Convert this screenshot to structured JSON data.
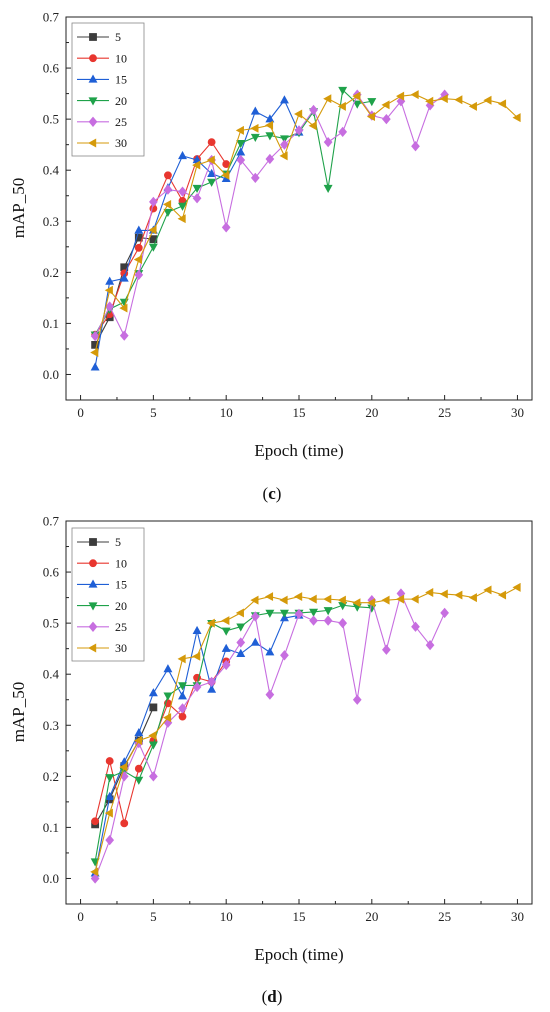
{
  "chart_data": [
    {
      "type": "line",
      "panel_label": "c",
      "xlabel": "Epoch (time)",
      "ylabel": "mAP_50",
      "xlim": [
        -1,
        31
      ],
      "ylim": [
        -0.05,
        0.7
      ],
      "xticks": [
        0,
        5,
        10,
        15,
        20,
        25,
        30
      ],
      "yticks": [
        0.0,
        0.1,
        0.2,
        0.3,
        0.4,
        0.5,
        0.6,
        0.7
      ],
      "legend_position": "top-left",
      "series": [
        {
          "name": "5",
          "color": "#3c3c3c",
          "marker": "square",
          "x": [
            1,
            2,
            3,
            4,
            5
          ],
          "y": [
            0.058,
            0.112,
            0.21,
            0.268,
            0.265
          ]
        },
        {
          "name": "10",
          "color": "#e8362f",
          "marker": "circle",
          "x": [
            1,
            2,
            3,
            4,
            5,
            6,
            7,
            8,
            9,
            10
          ],
          "y": [
            0.078,
            0.118,
            0.198,
            0.248,
            0.325,
            0.39,
            0.34,
            0.422,
            0.455,
            0.412
          ]
        },
        {
          "name": "15",
          "color": "#1f5fd6",
          "marker": "triangle-up",
          "x": [
            1,
            2,
            3,
            4,
            5,
            6,
            7,
            8,
            9,
            10,
            11,
            12,
            13,
            14,
            15
          ],
          "y": [
            0.014,
            0.182,
            0.188,
            0.282,
            0.282,
            0.365,
            0.428,
            0.42,
            0.393,
            0.383,
            0.435,
            0.515,
            0.5,
            0.537,
            0.474
          ]
        },
        {
          "name": "20",
          "color": "#1fa24a",
          "marker": "triangle-down",
          "x": [
            1,
            2,
            3,
            4,
            5,
            6,
            7,
            8,
            9,
            10,
            11,
            12,
            13,
            14,
            15,
            16,
            17,
            18,
            19,
            20
          ],
          "y": [
            0.078,
            0.128,
            0.142,
            0.198,
            0.25,
            0.318,
            0.33,
            0.365,
            0.377,
            0.393,
            0.453,
            0.465,
            0.468,
            0.462,
            0.474,
            0.515,
            0.365,
            0.557,
            0.53,
            0.535
          ]
        },
        {
          "name": "25",
          "color": "#c76ee0",
          "marker": "diamond",
          "x": [
            1,
            2,
            3,
            4,
            5,
            6,
            7,
            8,
            9,
            10,
            11,
            12,
            13,
            14,
            15,
            16,
            17,
            18,
            19,
            20,
            21,
            22,
            23,
            24,
            25
          ],
          "y": [
            0.075,
            0.133,
            0.076,
            0.195,
            0.338,
            0.362,
            0.358,
            0.345,
            0.42,
            0.288,
            0.42,
            0.385,
            0.422,
            0.45,
            0.478,
            0.518,
            0.455,
            0.475,
            0.548,
            0.507,
            0.5,
            0.535,
            0.447,
            0.527,
            0.548
          ]
        },
        {
          "name": "30",
          "color": "#d59a0a",
          "marker": "triangle-left",
          "x": [
            1,
            2,
            3,
            4,
            5,
            6,
            7,
            8,
            9,
            10,
            11,
            12,
            13,
            14,
            15,
            16,
            17,
            18,
            19,
            20,
            21,
            22,
            23,
            24,
            25,
            26,
            27,
            28,
            29,
            30
          ],
          "y": [
            0.043,
            0.165,
            0.13,
            0.225,
            0.283,
            0.333,
            0.305,
            0.41,
            0.42,
            0.39,
            0.478,
            0.482,
            0.488,
            0.428,
            0.51,
            0.487,
            0.54,
            0.525,
            0.545,
            0.505,
            0.528,
            0.545,
            0.548,
            0.535,
            0.54,
            0.538,
            0.525,
            0.537,
            0.53,
            0.503
          ]
        }
      ]
    },
    {
      "type": "line",
      "panel_label": "d",
      "xlabel": "Epoch (time)",
      "ylabel": "mAP_50",
      "xlim": [
        -1,
        31
      ],
      "ylim": [
        -0.05,
        0.7
      ],
      "xticks": [
        0,
        5,
        10,
        15,
        20,
        25,
        30
      ],
      "yticks": [
        0.0,
        0.1,
        0.2,
        0.3,
        0.4,
        0.5,
        0.6,
        0.7
      ],
      "legend_position": "top-left",
      "series": [
        {
          "name": "5",
          "color": "#3c3c3c",
          "marker": "square",
          "x": [
            1,
            2,
            3,
            4,
            5
          ],
          "y": [
            0.106,
            0.155,
            0.22,
            0.27,
            0.335
          ]
        },
        {
          "name": "10",
          "color": "#e8362f",
          "marker": "circle",
          "x": [
            1,
            2,
            3,
            4,
            5,
            6,
            7,
            8,
            9,
            10
          ],
          "y": [
            0.112,
            0.23,
            0.108,
            0.215,
            0.27,
            0.343,
            0.317,
            0.393,
            0.385,
            0.425
          ]
        },
        {
          "name": "15",
          "color": "#1f5fd6",
          "marker": "triangle-up",
          "x": [
            1,
            2,
            3,
            4,
            5,
            6,
            7,
            8,
            9,
            10,
            11,
            12,
            13,
            14,
            15
          ],
          "y": [
            0.01,
            0.16,
            0.228,
            0.285,
            0.363,
            0.41,
            0.357,
            0.485,
            0.37,
            0.45,
            0.44,
            0.462,
            0.443,
            0.51,
            0.515
          ]
        },
        {
          "name": "20",
          "color": "#1fa24a",
          "marker": "triangle-down",
          "x": [
            1,
            2,
            3,
            4,
            5,
            6,
            7,
            8,
            9,
            10,
            11,
            12,
            13,
            14,
            15,
            16,
            17,
            18,
            19,
            20
          ],
          "y": [
            0.033,
            0.198,
            0.21,
            0.193,
            0.262,
            0.358,
            0.378,
            0.378,
            0.5,
            0.485,
            0.493,
            0.515,
            0.52,
            0.52,
            0.52,
            0.522,
            0.525,
            0.535,
            0.532,
            0.53
          ]
        },
        {
          "name": "25",
          "color": "#c76ee0",
          "marker": "diamond",
          "x": [
            1,
            2,
            3,
            4,
            5,
            6,
            7,
            8,
            9,
            10,
            11,
            12,
            13,
            14,
            15,
            16,
            17,
            18,
            19,
            20,
            21,
            22,
            23,
            24,
            25
          ],
          "y": [
            0.0,
            0.075,
            0.2,
            0.265,
            0.2,
            0.305,
            0.333,
            0.375,
            0.385,
            0.418,
            0.462,
            0.513,
            0.36,
            0.437,
            0.518,
            0.505,
            0.505,
            0.5,
            0.35,
            0.545,
            0.448,
            0.558,
            0.493,
            0.457,
            0.52
          ]
        },
        {
          "name": "30",
          "color": "#d59a0a",
          "marker": "triangle-left",
          "x": [
            1,
            2,
            3,
            4,
            5,
            6,
            7,
            8,
            9,
            10,
            11,
            12,
            13,
            14,
            15,
            16,
            17,
            18,
            19,
            20,
            21,
            22,
            23,
            24,
            25,
            26,
            27,
            28,
            29,
            30
          ],
          "y": [
            0.013,
            0.128,
            0.218,
            0.27,
            0.28,
            0.315,
            0.43,
            0.435,
            0.5,
            0.505,
            0.52,
            0.545,
            0.552,
            0.545,
            0.552,
            0.547,
            0.547,
            0.545,
            0.54,
            0.54,
            0.545,
            0.547,
            0.547,
            0.56,
            0.557,
            0.555,
            0.55,
            0.565,
            0.555,
            0.57
          ]
        }
      ]
    }
  ]
}
